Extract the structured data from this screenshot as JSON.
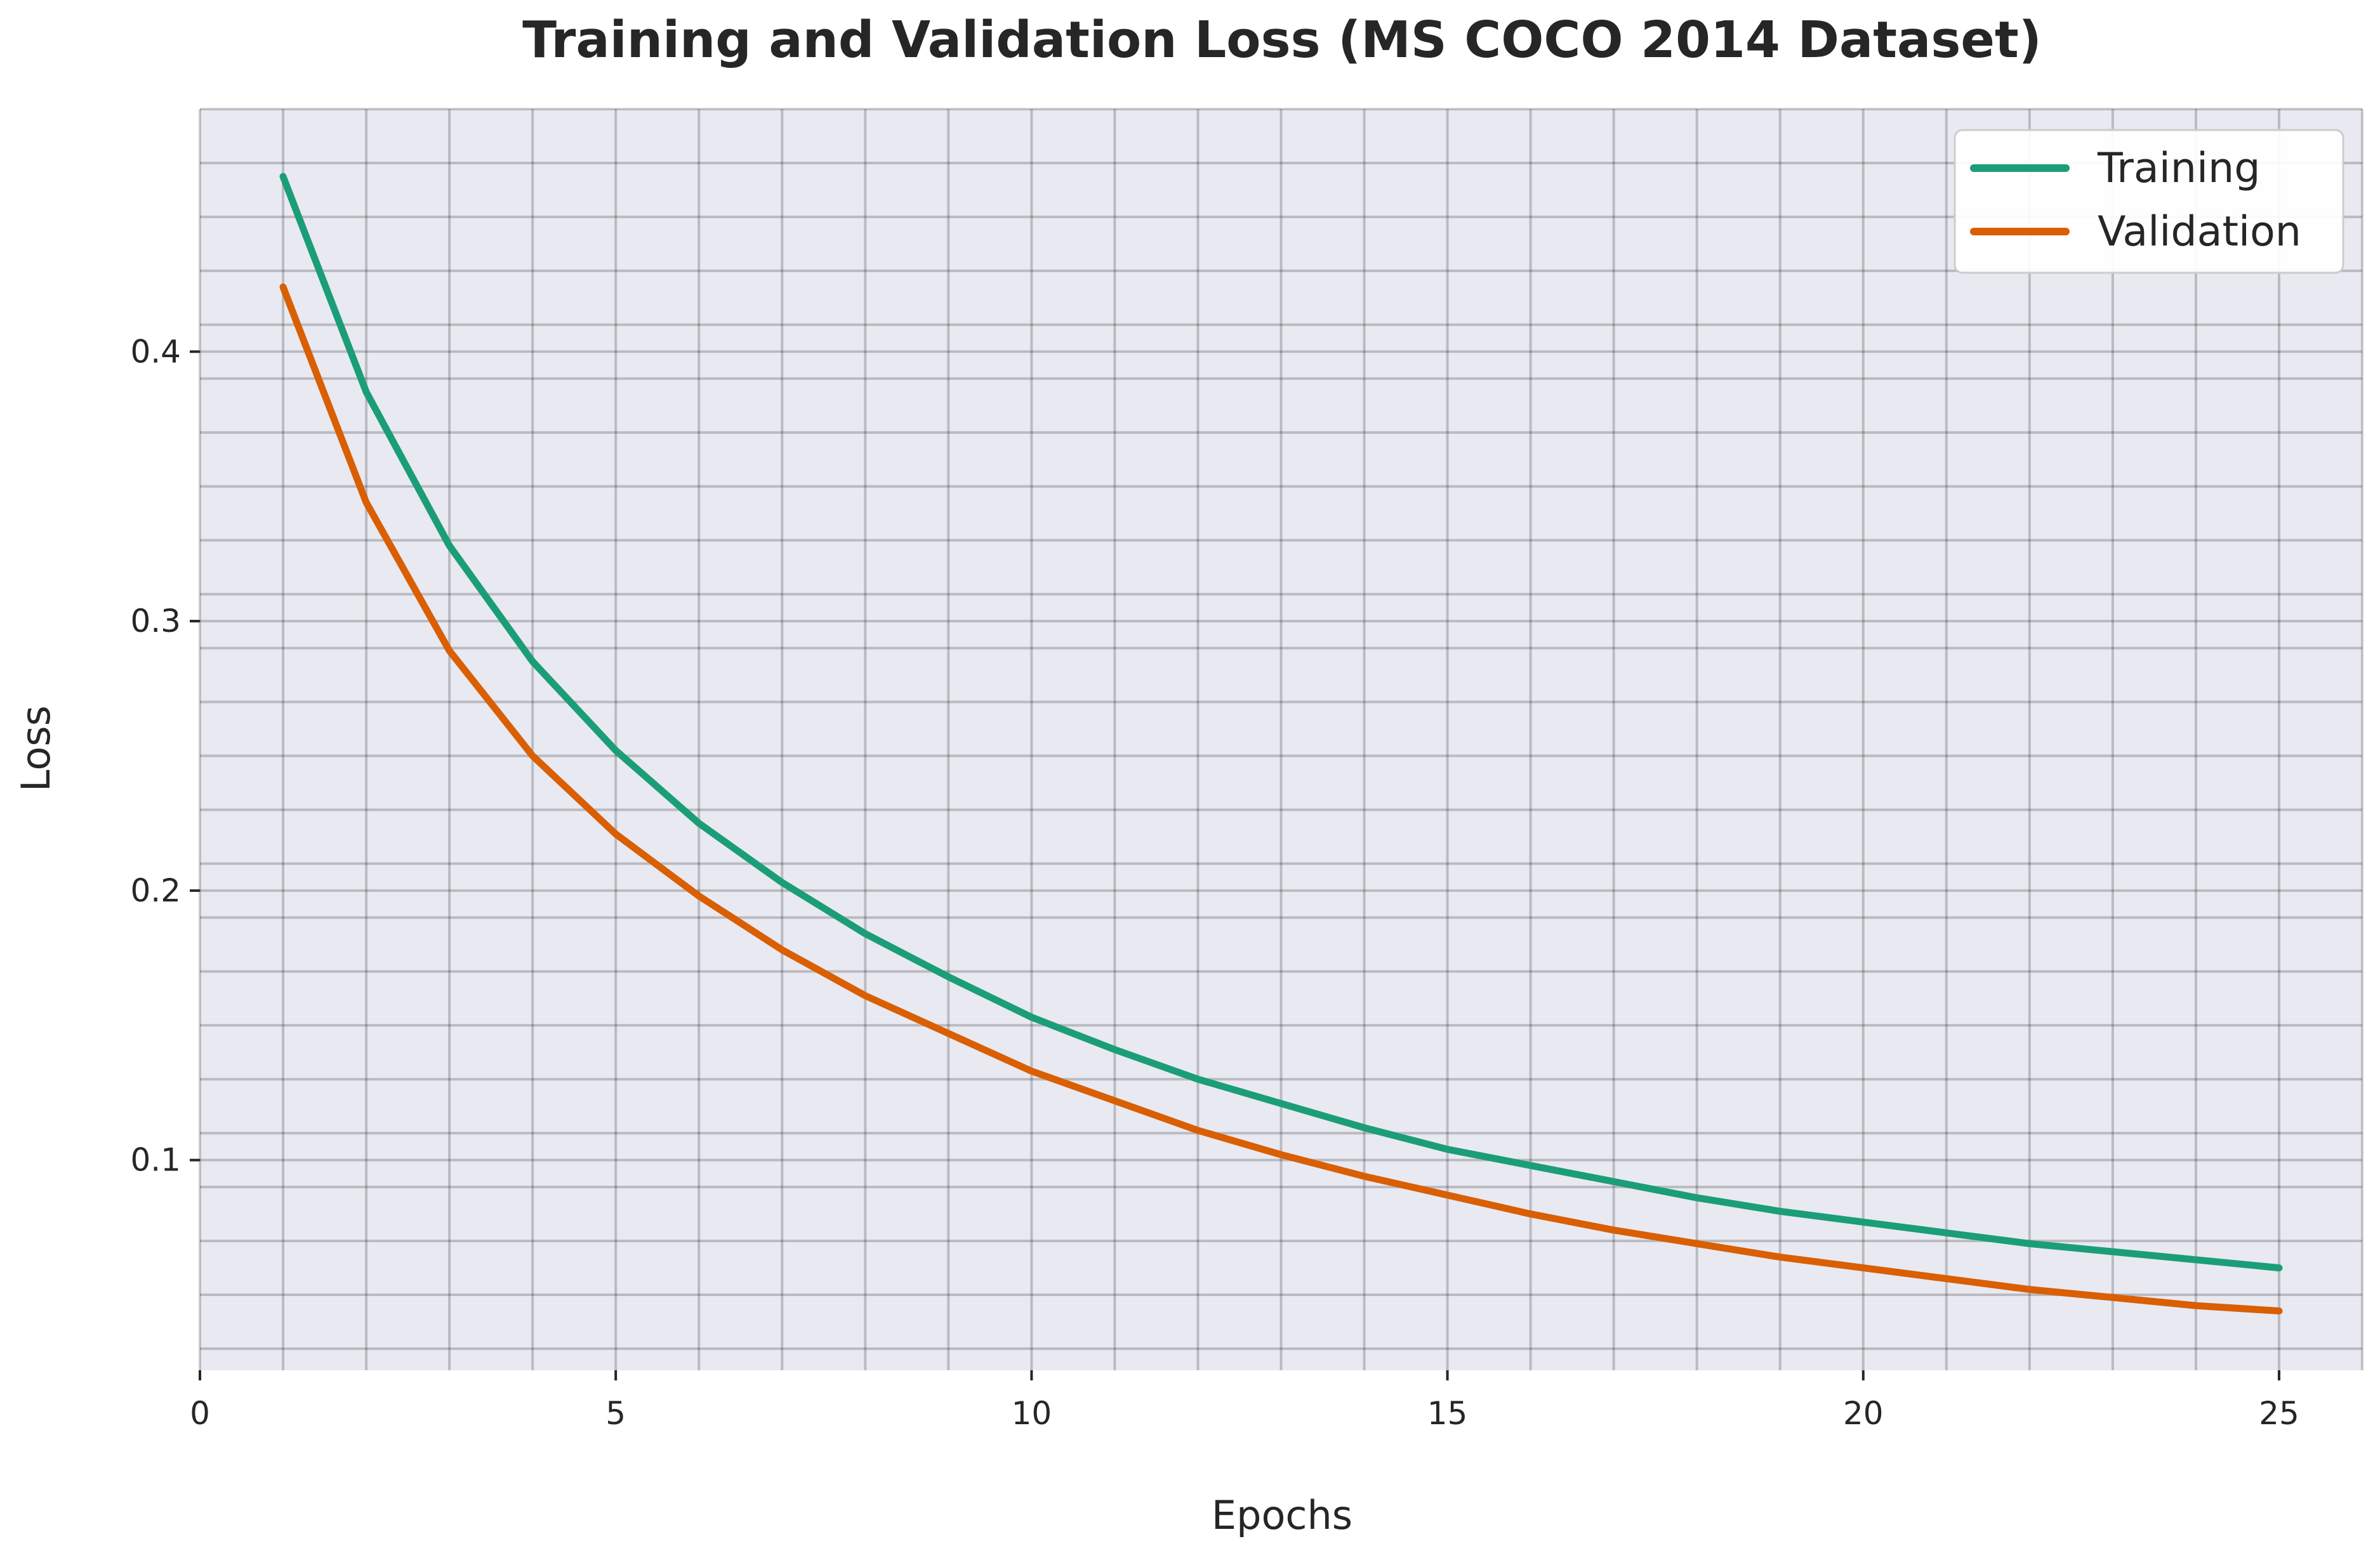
{
  "chart_data": {
    "type": "line",
    "title": "Training and Validation Loss (MS COCO 2014 Dataset)",
    "xlabel": "Epochs",
    "ylabel": "Loss",
    "xlim": [
      0,
      26
    ],
    "ylim": [
      0.022,
      0.49
    ],
    "xticks": [
      0,
      5,
      10,
      15,
      20,
      25
    ],
    "xtick_labels": [
      "0",
      "5",
      "10",
      "15",
      "20",
      "25"
    ],
    "yticks": [
      0.1,
      0.2,
      0.3,
      0.4
    ],
    "ytick_labels": [
      "0.1",
      "0.2",
      "0.3",
      "0.4"
    ],
    "grid": true,
    "legend_position": "top-right",
    "x": [
      1,
      2,
      3,
      4,
      5,
      6,
      7,
      8,
      9,
      10,
      11,
      12,
      13,
      14,
      15,
      16,
      17,
      18,
      19,
      20,
      21,
      22,
      23,
      24,
      25
    ],
    "series": [
      {
        "name": "Training",
        "color": "#1b9e77",
        "values": [
          0.465,
          0.385,
          0.328,
          0.285,
          0.252,
          0.225,
          0.203,
          0.184,
          0.168,
          0.153,
          0.141,
          0.13,
          0.121,
          0.112,
          0.104,
          0.098,
          0.092,
          0.086,
          0.081,
          0.077,
          0.073,
          0.069,
          0.066,
          0.063,
          0.06
        ]
      },
      {
        "name": "Validation",
        "color": "#d95f02",
        "values": [
          0.424,
          0.344,
          0.289,
          0.25,
          0.221,
          0.198,
          0.178,
          0.161,
          0.147,
          0.133,
          0.122,
          0.111,
          0.102,
          0.094,
          0.087,
          0.08,
          0.074,
          0.069,
          0.064,
          0.06,
          0.056,
          0.052,
          0.049,
          0.046,
          0.044
        ]
      }
    ]
  }
}
